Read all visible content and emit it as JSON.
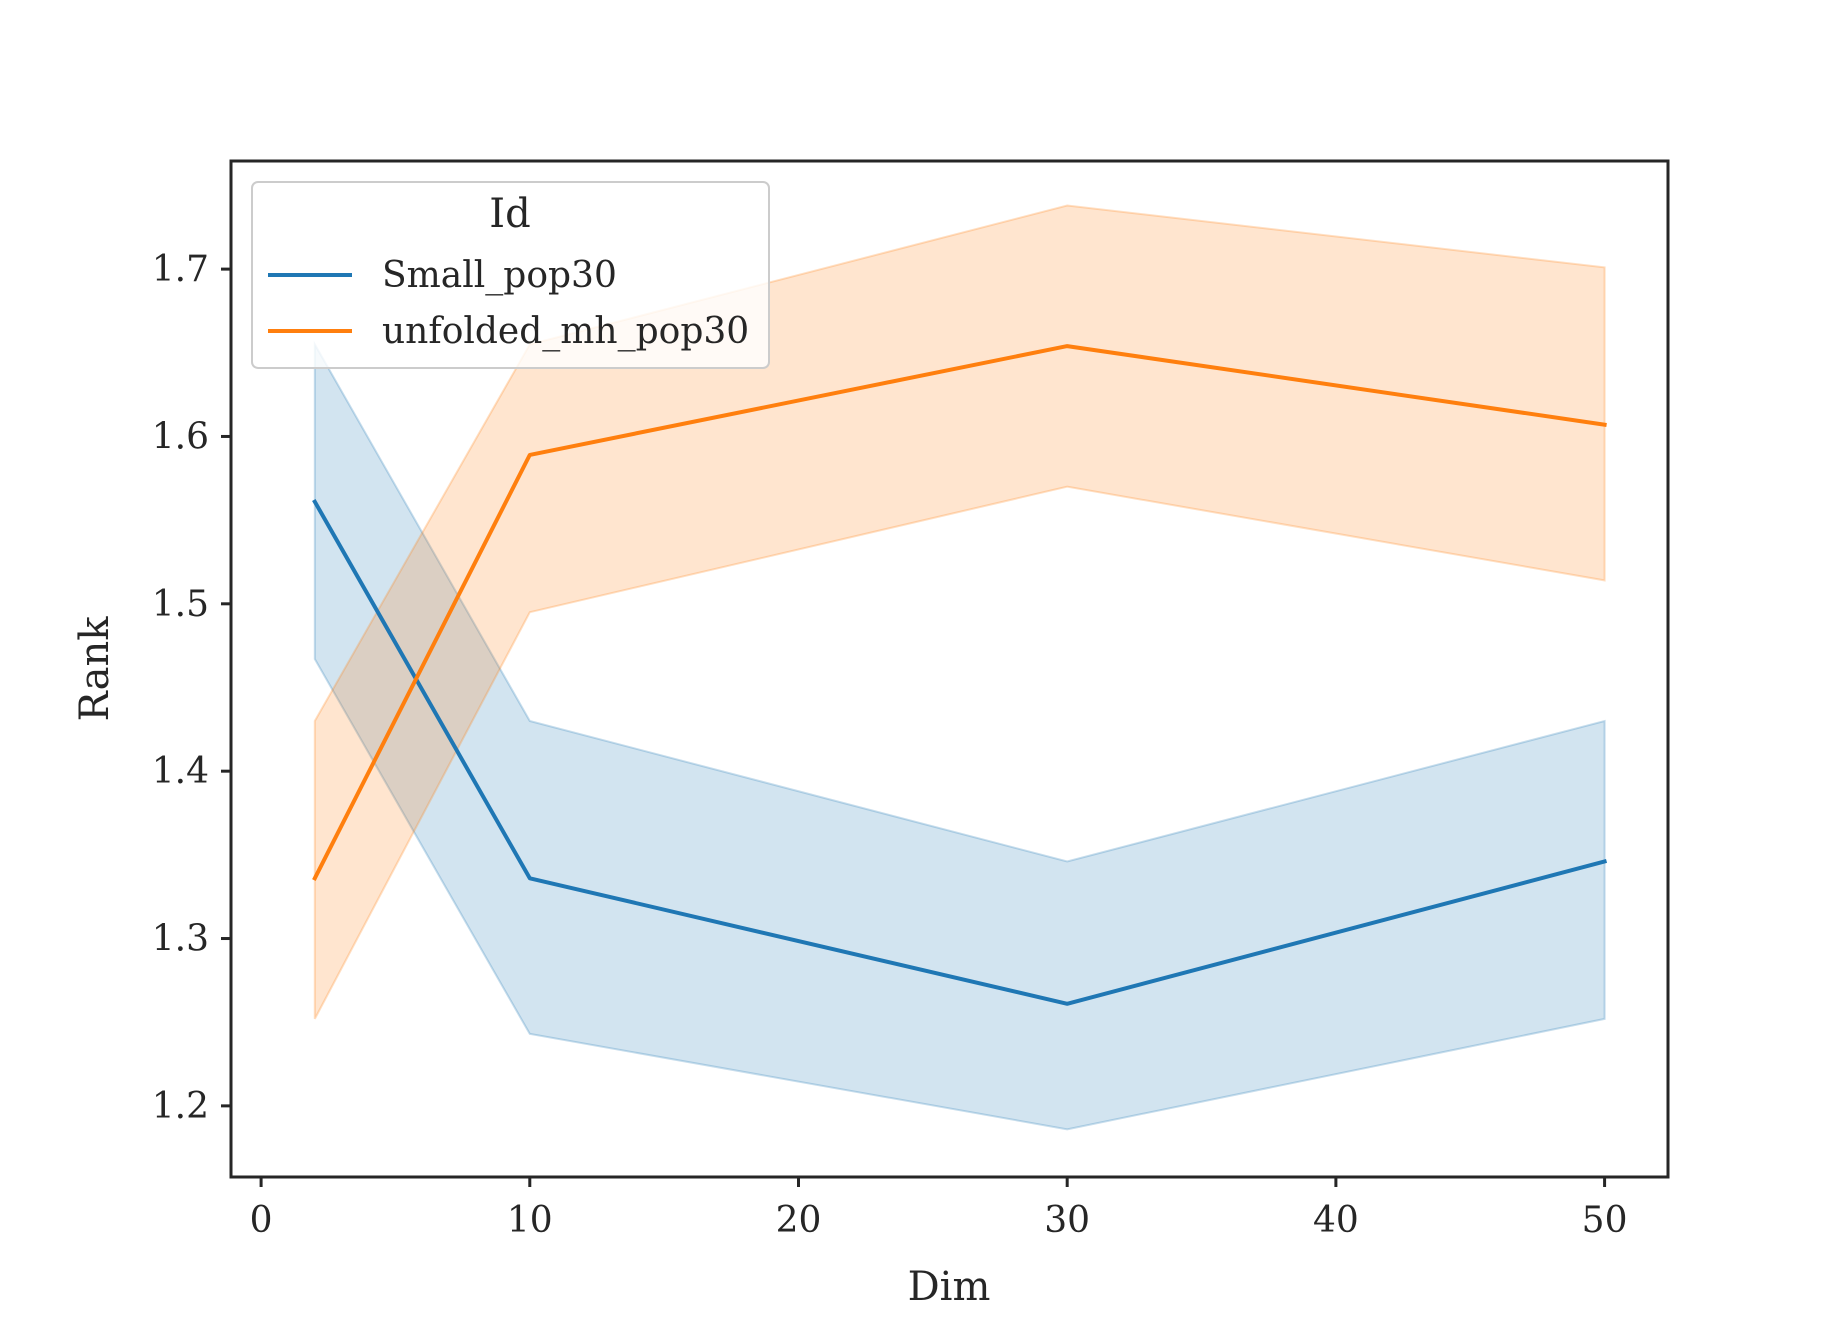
{
  "chart_data": {
    "type": "line",
    "xlabel": "Dim",
    "ylabel": "Rank",
    "xlim": [
      -1.12,
      52.36
    ],
    "ylim": [
      1.1575,
      1.7646
    ],
    "xticks": [
      0,
      10,
      20,
      30,
      40,
      50
    ],
    "yticks": [
      1.2,
      1.3,
      1.4,
      1.5,
      1.6,
      1.7
    ],
    "x_tick_labels": [
      "0",
      "10",
      "20",
      "30",
      "40",
      "50"
    ],
    "y_tick_labels": [
      "1.2",
      "1.3",
      "1.4",
      "1.5",
      "1.6",
      "1.7"
    ],
    "grid": false,
    "legend": {
      "title": "Id",
      "position": "top-left"
    },
    "x": [
      2,
      10,
      30,
      50
    ],
    "series": [
      {
        "name": "Small_pop30",
        "color": "#1f77b4",
        "values": [
          1.561,
          1.336,
          1.261,
          1.346
        ],
        "band_lower": [
          1.467,
          1.243,
          1.186,
          1.252
        ],
        "band_upper": [
          1.655,
          1.43,
          1.346,
          1.43
        ]
      },
      {
        "name": "unfolded_mh_pop30",
        "color": "#ff7f0e",
        "values": [
          1.336,
          1.589,
          1.654,
          1.607
        ],
        "band_lower": [
          1.252,
          1.495,
          1.57,
          1.514
        ],
        "band_upper": [
          1.43,
          1.655,
          1.738,
          1.701
        ]
      }
    ]
  }
}
